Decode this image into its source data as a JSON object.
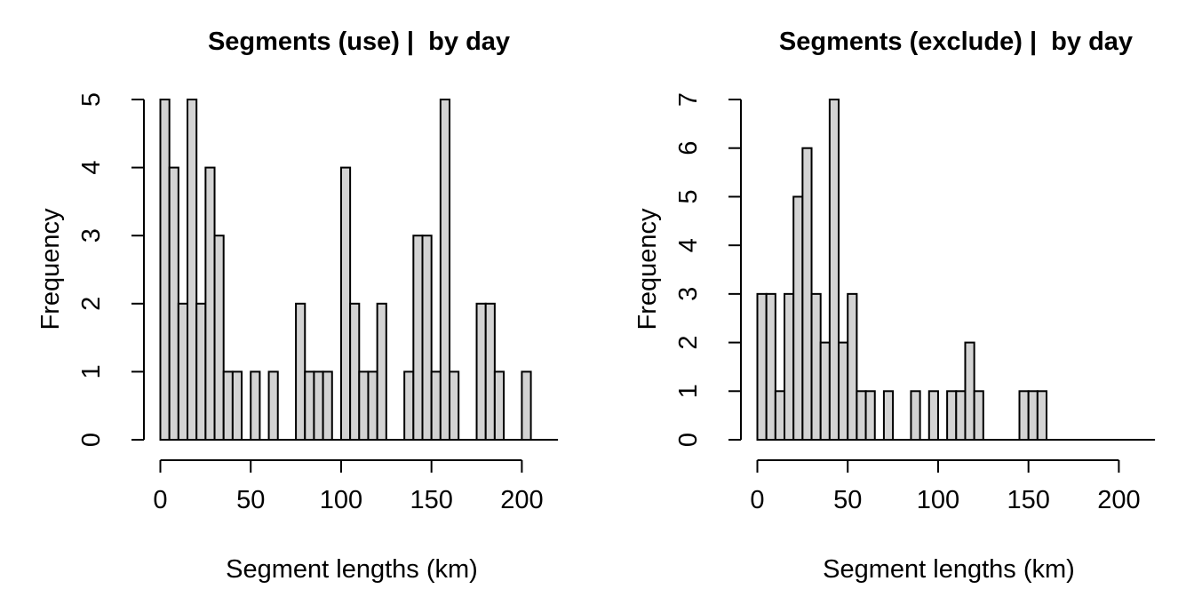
{
  "page": {
    "background": "#ffffff",
    "text_color": "#000000"
  },
  "chart_data": [
    {
      "type": "bar",
      "subtype": "histogram",
      "title": "Segments (use) |  by day",
      "xlabel": "Segment lengths (km)",
      "ylabel": "Frequency",
      "bin_width": 5,
      "bin_start": 0,
      "counts": [
        5,
        4,
        2,
        5,
        2,
        4,
        3,
        1,
        1,
        0,
        1,
        0,
        1,
        0,
        0,
        2,
        1,
        1,
        1,
        0,
        4,
        2,
        1,
        1,
        2,
        0,
        0,
        1,
        3,
        3,
        1,
        5,
        1,
        0,
        0,
        2,
        2,
        1,
        0,
        0,
        1
      ],
      "xlim": [
        0,
        220
      ],
      "ylim": [
        0,
        5
      ],
      "xticks": [
        0,
        50,
        100,
        150,
        200
      ],
      "yticks": [
        0,
        1,
        2,
        3,
        4,
        5
      ],
      "bar_fill": "#d3d3d3",
      "bar_stroke": "#000000",
      "grid": false,
      "legend": "none"
    },
    {
      "type": "bar",
      "subtype": "histogram",
      "title": "Segments (exclude) |  by day",
      "xlabel": "Segment lengths (km)",
      "ylabel": "Frequency",
      "bin_width": 5,
      "bin_start": 0,
      "counts": [
        3,
        3,
        1,
        3,
        5,
        6,
        3,
        2,
        7,
        2,
        3,
        1,
        1,
        0,
        1,
        0,
        0,
        1,
        0,
        1,
        0,
        1,
        1,
        2,
        1,
        0,
        0,
        0,
        0,
        1,
        1,
        1
      ],
      "xlim": [
        0,
        220
      ],
      "ylim": [
        0,
        7
      ],
      "xticks": [
        0,
        50,
        100,
        150,
        200
      ],
      "yticks": [
        0,
        1,
        2,
        3,
        4,
        5,
        6,
        7
      ],
      "bar_fill": "#d3d3d3",
      "bar_stroke": "#000000",
      "grid": false,
      "legend": "none"
    }
  ]
}
